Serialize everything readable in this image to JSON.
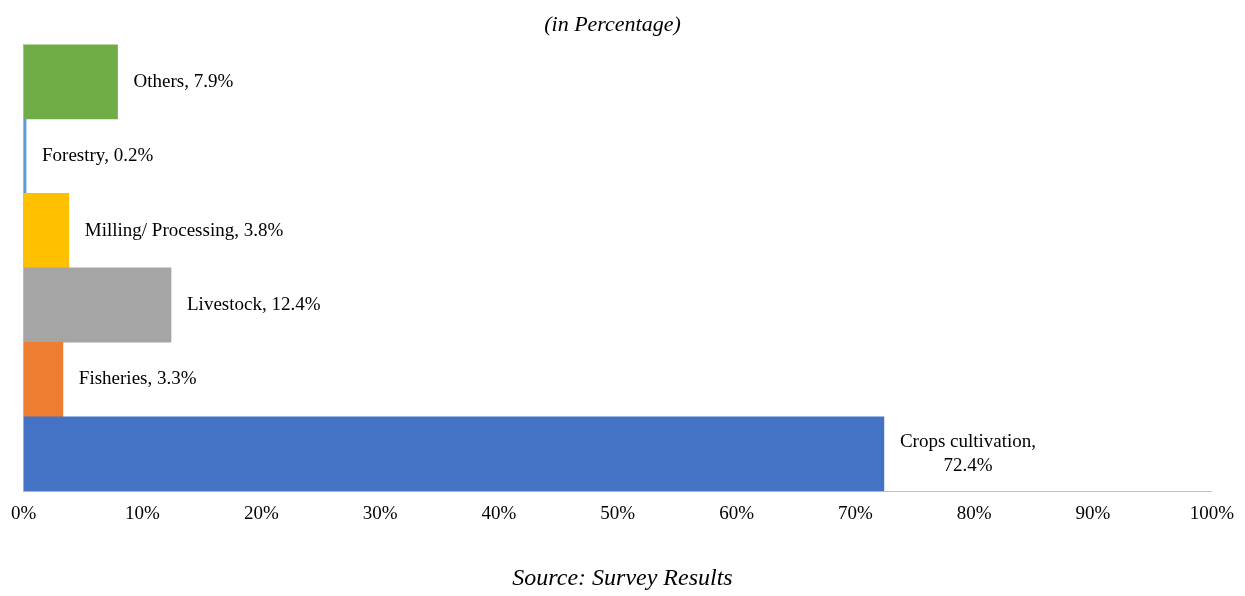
{
  "chart_data": {
    "type": "bar",
    "orientation": "horizontal",
    "title": "(in Percentage)",
    "categories": [
      null,
      null,
      null,
      null,
      null,
      null
    ],
    "values": [
      7.9,
      0.2,
      3.8,
      12.4,
      3.3,
      72.4
    ],
    "colors": [
      "#70ad47",
      "#5b9bd5",
      "#ffc000",
      "#a5a5a5",
      "#ed7d31",
      "#4472c4"
    ],
    "value_labels": [
      "Others, 7.9%",
      "Forestry, 0.2%",
      "Milling/ Processing, 3.8%",
      "Livestock, 12.4%",
      "Fisheries, 3.3%",
      "Crops cultivation, 72.4%"
    ],
    "xlim": [
      0,
      100
    ],
    "xticks": [
      {
        "value": 0,
        "label": "0%"
      },
      {
        "value": 10,
        "label": "10%"
      },
      {
        "value": 20,
        "label": "20%"
      },
      {
        "value": 30,
        "label": "30%"
      },
      {
        "value": 40,
        "label": "40%"
      },
      {
        "value": 50,
        "label": "50%"
      },
      {
        "value": 60,
        "label": "60%"
      },
      {
        "value": 70,
        "label": "70%"
      },
      {
        "value": 80,
        "label": "80%"
      },
      {
        "value": 90,
        "label": "90%"
      },
      {
        "value": 100,
        "label": "100%"
      }
    ],
    "tick_labels": "x",
    "grid": false,
    "legend": false,
    "annotations": [
      "Source: Survey Results"
    ]
  }
}
